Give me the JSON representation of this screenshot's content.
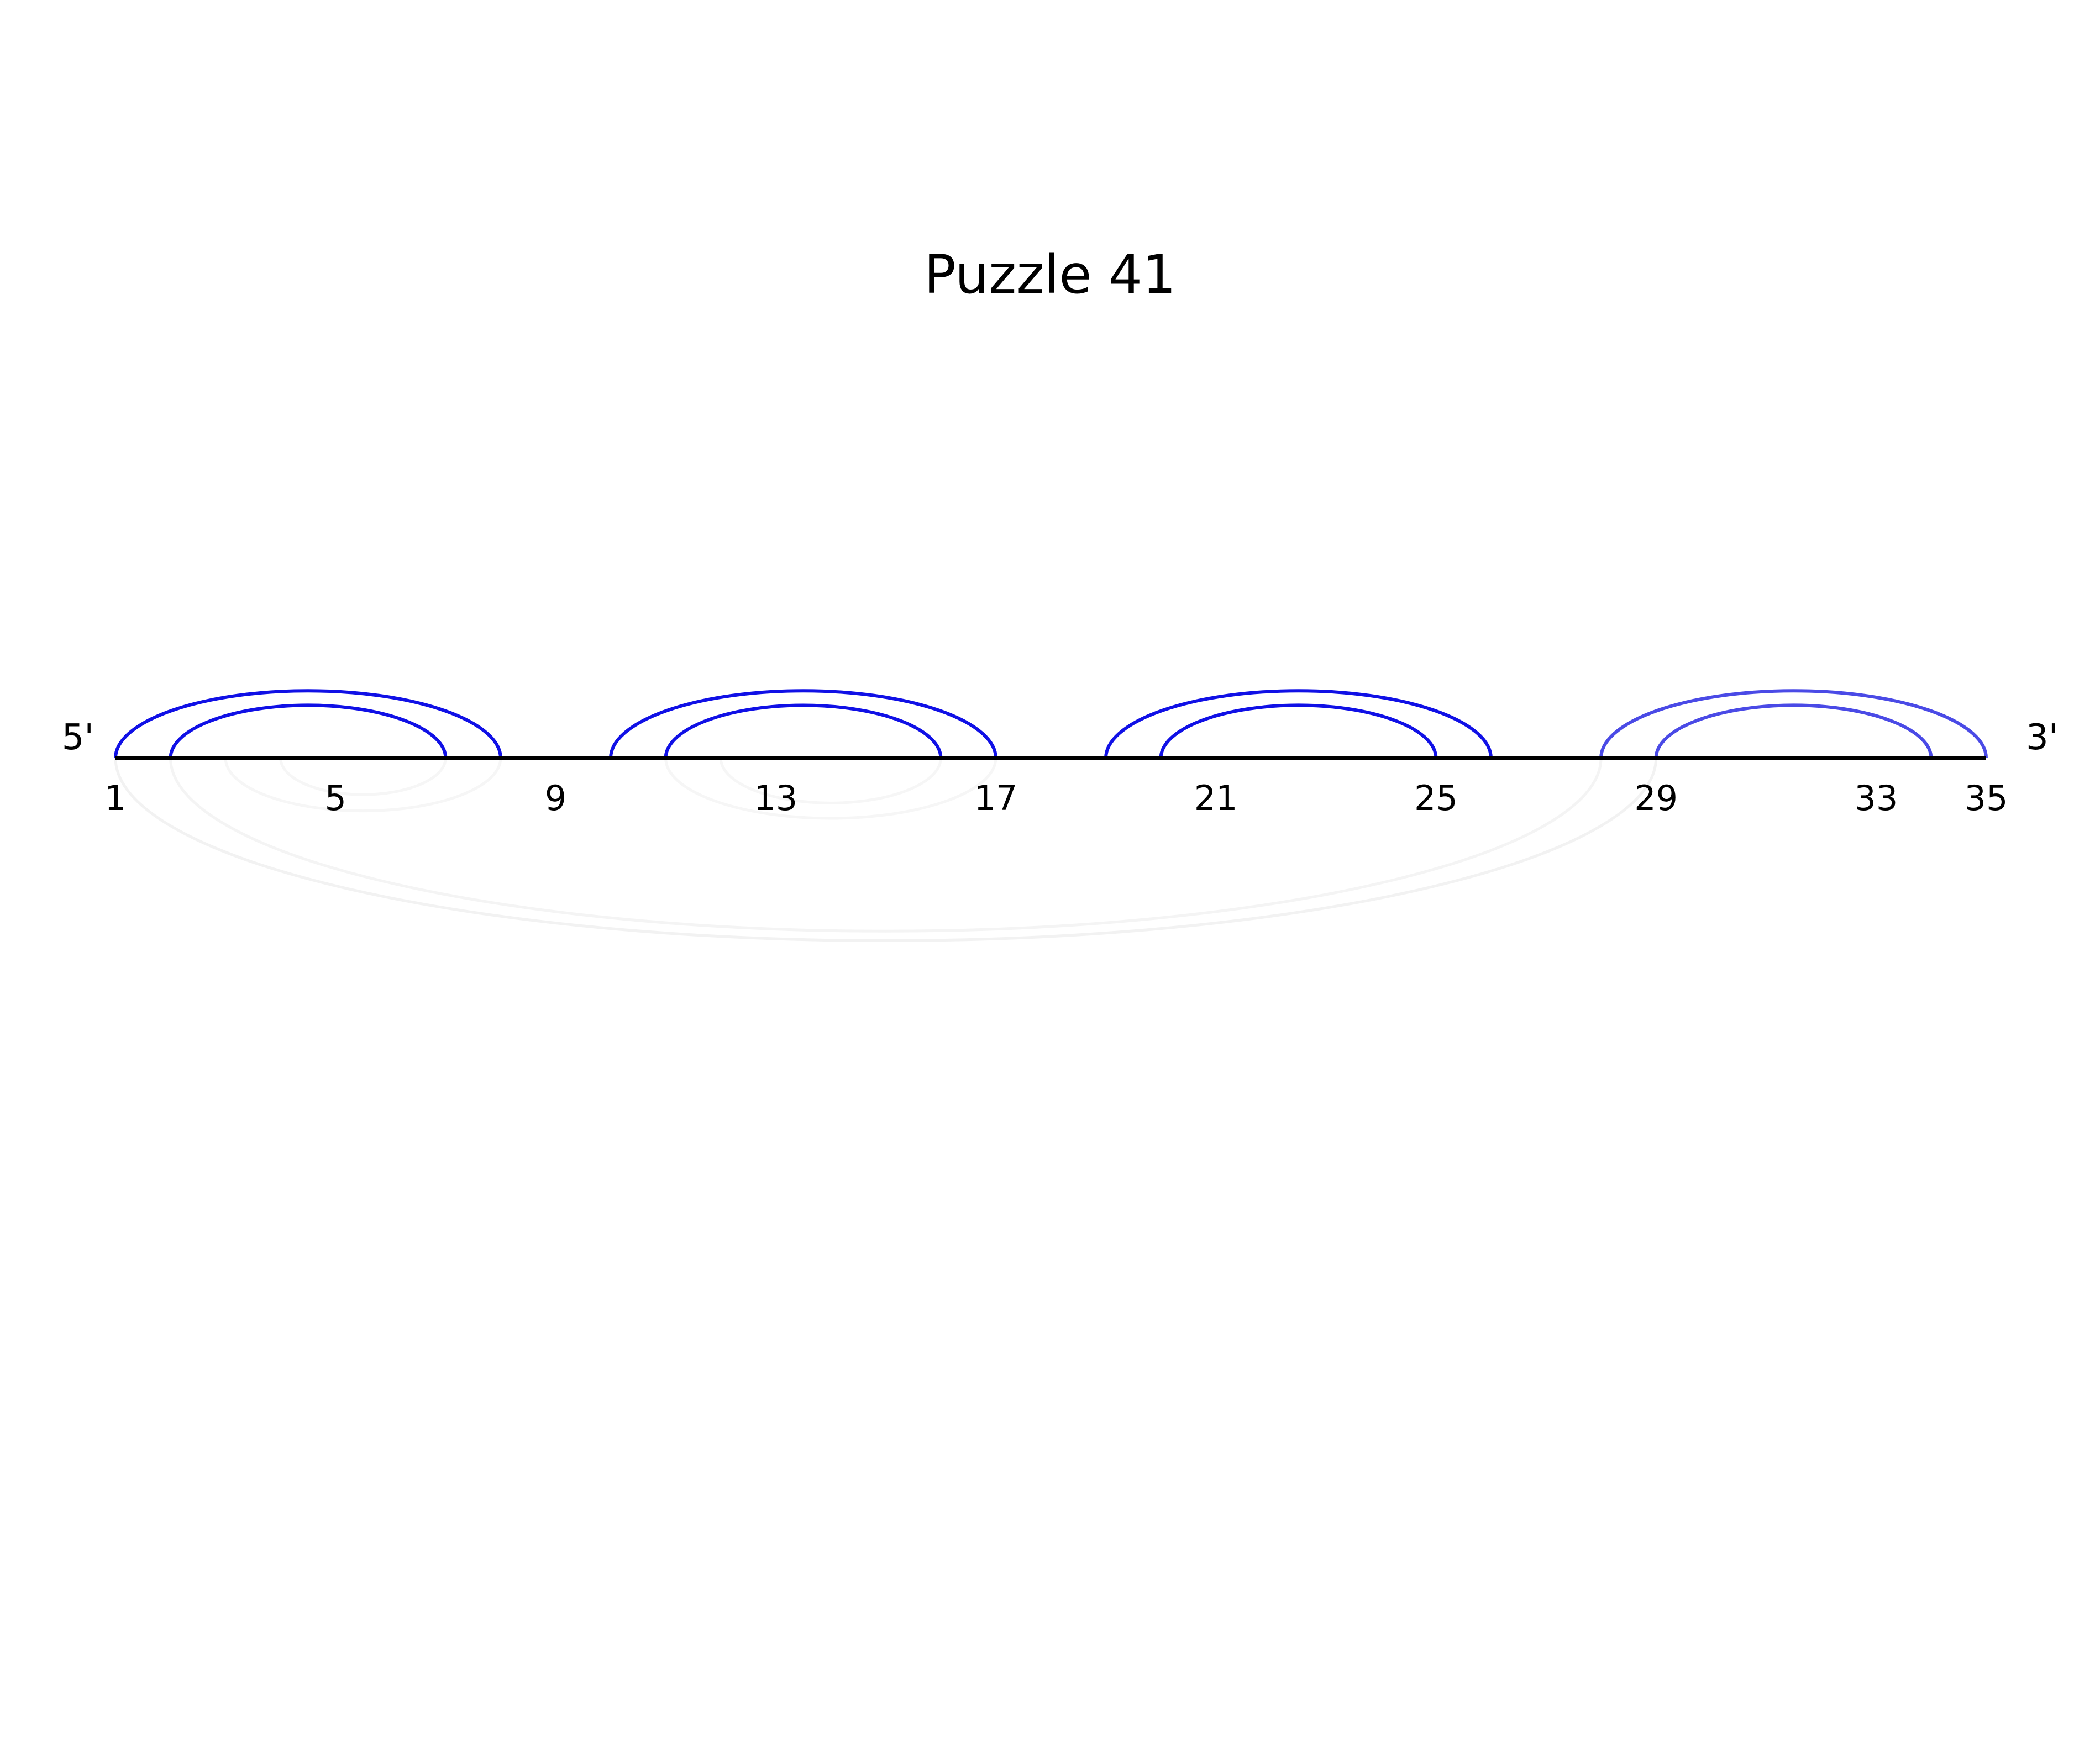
{
  "title": "Puzzle 41",
  "sequence": {
    "length": 35,
    "five_prime_label": "5'",
    "three_prime_label": "3'",
    "backbone_color": "#000000"
  },
  "position_labels": [
    "1",
    "5",
    "9",
    "13",
    "17",
    "21",
    "25",
    "29",
    "33",
    "35"
  ],
  "pairs_above": [
    {
      "i": 1,
      "j": 8,
      "color": "#1010e6",
      "opacity": 1.0
    },
    {
      "i": 2,
      "j": 7,
      "color": "#1010e6",
      "opacity": 1.0
    },
    {
      "i": 10,
      "j": 17,
      "color": "#1010e6",
      "opacity": 1.0
    },
    {
      "i": 11,
      "j": 16,
      "color": "#1010e6",
      "opacity": 1.0
    },
    {
      "i": 19,
      "j": 26,
      "color": "#1010e6",
      "opacity": 1.0
    },
    {
      "i": 20,
      "j": 25,
      "color": "#1010e6",
      "opacity": 1.0
    },
    {
      "i": 28,
      "j": 35,
      "color": "#4a4ae6",
      "opacity": 1.0
    },
    {
      "i": 29,
      "j": 34,
      "color": "#4a4ae6",
      "opacity": 1.0
    }
  ],
  "pairs_below": [
    {
      "i": 1,
      "j": 29,
      "color": "#f2f2f2",
      "opacity": 1.0
    },
    {
      "i": 2,
      "j": 28,
      "color": "#f4f4f4",
      "opacity": 1.0
    },
    {
      "i": 3,
      "j": 8,
      "color": "#f6f6f6",
      "opacity": 1.0
    },
    {
      "i": 4,
      "j": 7,
      "color": "#f6f6f6",
      "opacity": 1.0
    },
    {
      "i": 11,
      "j": 17,
      "color": "#f6f6f6",
      "opacity": 1.0
    },
    {
      "i": 12,
      "j": 16,
      "color": "#f6f6f6",
      "opacity": 1.0
    }
  ]
}
